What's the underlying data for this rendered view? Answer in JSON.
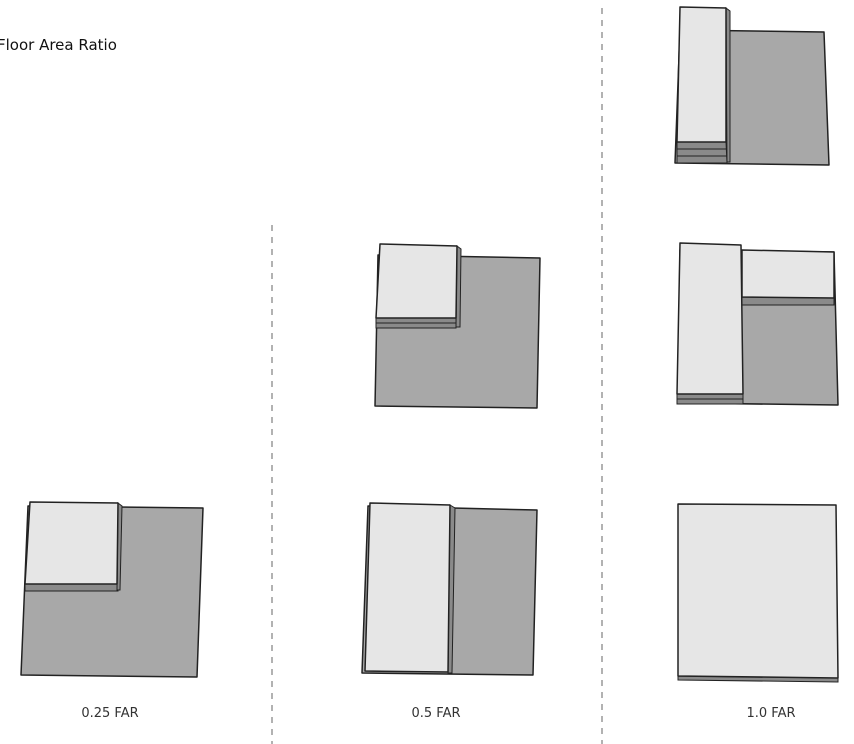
{
  "title": "Floor Area Ratio",
  "labels": [
    "0.25 FAR",
    "0.5 FAR",
    "1.0 FAR"
  ]
}
